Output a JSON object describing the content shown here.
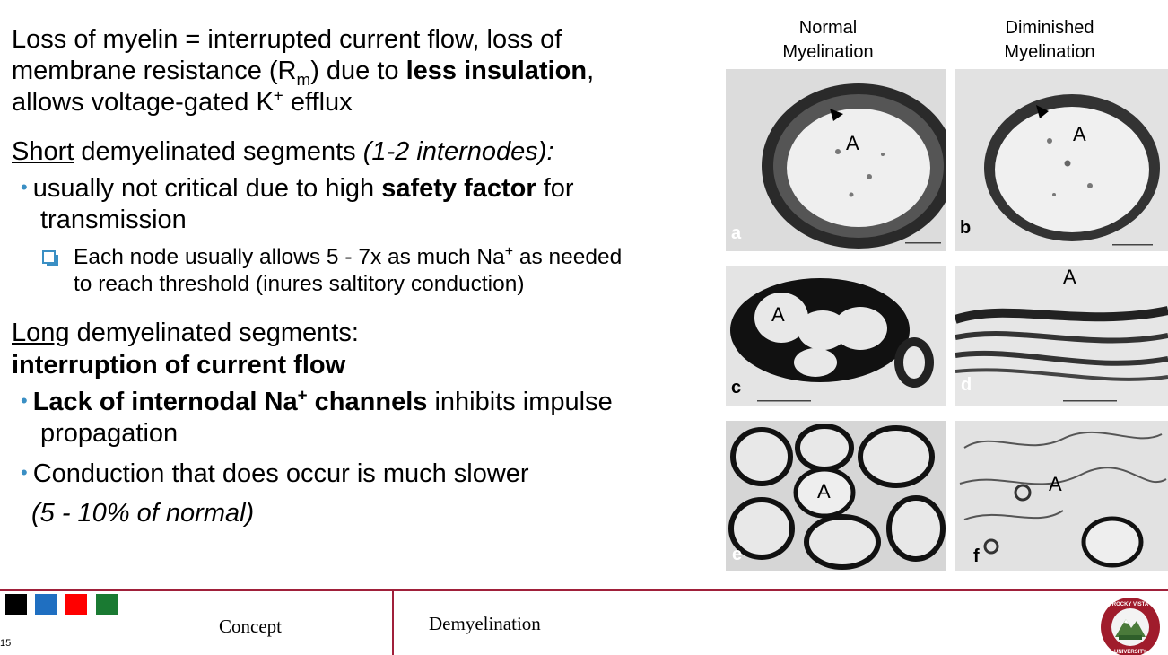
{
  "slide": {
    "line1a": "Loss of myelin = interrupted current flow, loss of",
    "line2a": "membrane resistance (R",
    "line2sub": "m",
    "line2b": ") due to ",
    "line2bold": "less insulation",
    "line2c": ",",
    "line3a": "allows voltage-gated K",
    "line3sup": "+",
    "line3b": " efflux",
    "short_u": "Short",
    "short_rest": " demyelinated segments ",
    "short_ital": "(1-2 internodes):",
    "b1a": "usually not critical due to high ",
    "b1bold": "safety factor",
    "b1b": " for",
    "b1cont": "transmission",
    "sub1a": "Each node usually allows 5 - 7x as much Na",
    "sub1sup": "+",
    "sub1b": " as needed",
    "sub1cont": "to reach threshold (inures saltitory conduction)",
    "long_u": "Long",
    "long_rest": " demyelinated segments:",
    "long_bold": "interruption of current flow",
    "b2bold": "Lack of internodal Na",
    "b2sup": "+",
    "b2bold2": " channels",
    "b2rest": " inhibits impulse",
    "b2cont": "propagation",
    "b3": "Conduction that does occur is much slower",
    "b3cont": "(5 - 10%  of normal)"
  },
  "figure": {
    "col1_l1": "Normal",
    "col1_l2": "Myelination",
    "col2_l1": "Diminished",
    "col2_l2": "Myelination",
    "panels": {
      "a": "a",
      "b": "b",
      "c": "c",
      "d": "d",
      "e": "e",
      "f": "f"
    },
    "axon_label": "A"
  },
  "footer": {
    "concept": "Concept",
    "topic": "Demyelination",
    "page_number": "15",
    "swatch_colors": [
      "#000000",
      "#1f6fc1",
      "#ff0000",
      "#1a7a32"
    ],
    "logo_text": "ROCKY VISTA UNIVERSITY"
  }
}
